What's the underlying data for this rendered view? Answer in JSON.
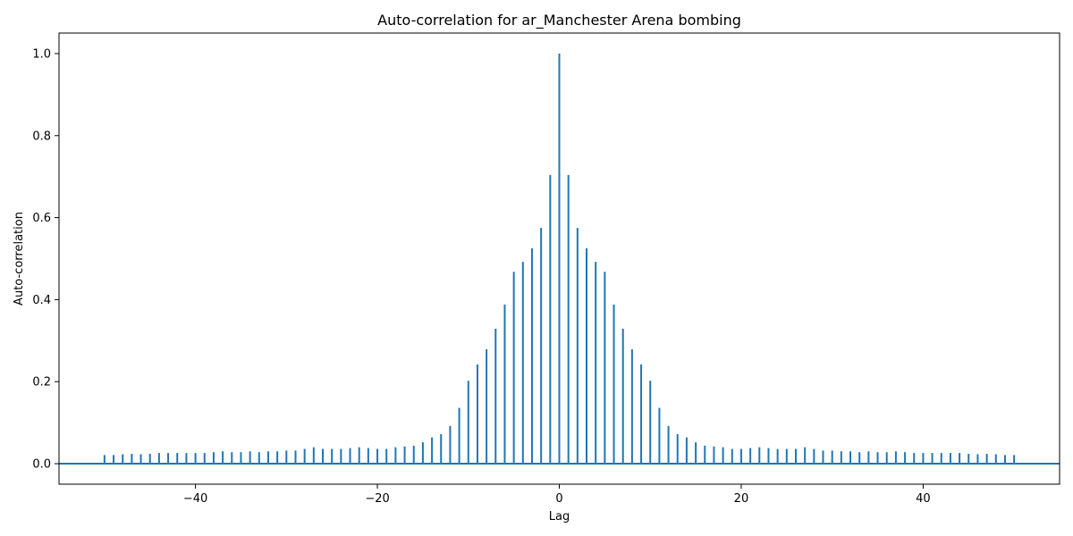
{
  "chart_data": {
    "type": "bar",
    "title": "Auto-correlation for ar_Manchester Arena bombing",
    "xlabel": "Lag",
    "ylabel": "Auto-correlation",
    "xlim": [
      -55,
      55
    ],
    "ylim": [
      -0.05,
      1.05
    ],
    "xticks": [
      -40,
      -20,
      0,
      20,
      40
    ],
    "xtick_labels": [
      "−40",
      "−20",
      "0",
      "20",
      "40"
    ],
    "yticks": [
      0.0,
      0.2,
      0.4,
      0.6,
      0.8,
      1.0
    ],
    "ytick_labels": [
      "0.0",
      "0.2",
      "0.4",
      "0.6",
      "0.8",
      "1.0"
    ],
    "grid": false,
    "bar_color": "#1f77b4",
    "baseline_y": 0,
    "series": [
      {
        "x": [
          -50,
          -49,
          -48,
          -47,
          -46,
          -45,
          -44,
          -43,
          -42,
          -41,
          -40,
          -39,
          -38,
          -37,
          -36,
          -35,
          -34,
          -33,
          -32,
          -31,
          -30,
          -29,
          -28,
          -27,
          -26,
          -25,
          -24,
          -23,
          -22,
          -21,
          -20,
          -19,
          -18,
          -17,
          -16,
          -15,
          -14,
          -13,
          -12,
          -11,
          -10,
          -9,
          -8,
          -7,
          -6,
          -5,
          -4,
          -3,
          -2,
          -1,
          0,
          1,
          2,
          3,
          4,
          5,
          6,
          7,
          8,
          9,
          10,
          11,
          12,
          13,
          14,
          15,
          16,
          17,
          18,
          19,
          20,
          21,
          22,
          23,
          24,
          25,
          26,
          27,
          28,
          29,
          30,
          31,
          32,
          33,
          34,
          35,
          36,
          37,
          38,
          39,
          40,
          41,
          42,
          43,
          44,
          45,
          46,
          47,
          48,
          49,
          50
        ],
        "values": [
          0.021,
          0.021,
          0.023,
          0.024,
          0.023,
          0.024,
          0.026,
          0.026,
          0.026,
          0.026,
          0.026,
          0.026,
          0.028,
          0.03,
          0.028,
          0.028,
          0.03,
          0.028,
          0.03,
          0.03,
          0.032,
          0.032,
          0.036,
          0.04,
          0.036,
          0.036,
          0.036,
          0.038,
          0.04,
          0.038,
          0.036,
          0.036,
          0.04,
          0.042,
          0.044,
          0.052,
          0.064,
          0.072,
          0.092,
          0.136,
          0.202,
          0.242,
          0.279,
          0.329,
          0.388,
          0.468,
          0.492,
          0.525,
          0.575,
          0.704,
          1.0,
          0.704,
          0.575,
          0.525,
          0.492,
          0.468,
          0.388,
          0.329,
          0.279,
          0.242,
          0.202,
          0.136,
          0.092,
          0.072,
          0.064,
          0.052,
          0.044,
          0.042,
          0.04,
          0.036,
          0.036,
          0.038,
          0.04,
          0.038,
          0.036,
          0.036,
          0.036,
          0.04,
          0.036,
          0.032,
          0.032,
          0.03,
          0.03,
          0.028,
          0.03,
          0.028,
          0.028,
          0.03,
          0.028,
          0.026,
          0.026,
          0.026,
          0.026,
          0.026,
          0.026,
          0.024,
          0.023,
          0.024,
          0.023,
          0.021,
          0.021
        ]
      }
    ]
  }
}
